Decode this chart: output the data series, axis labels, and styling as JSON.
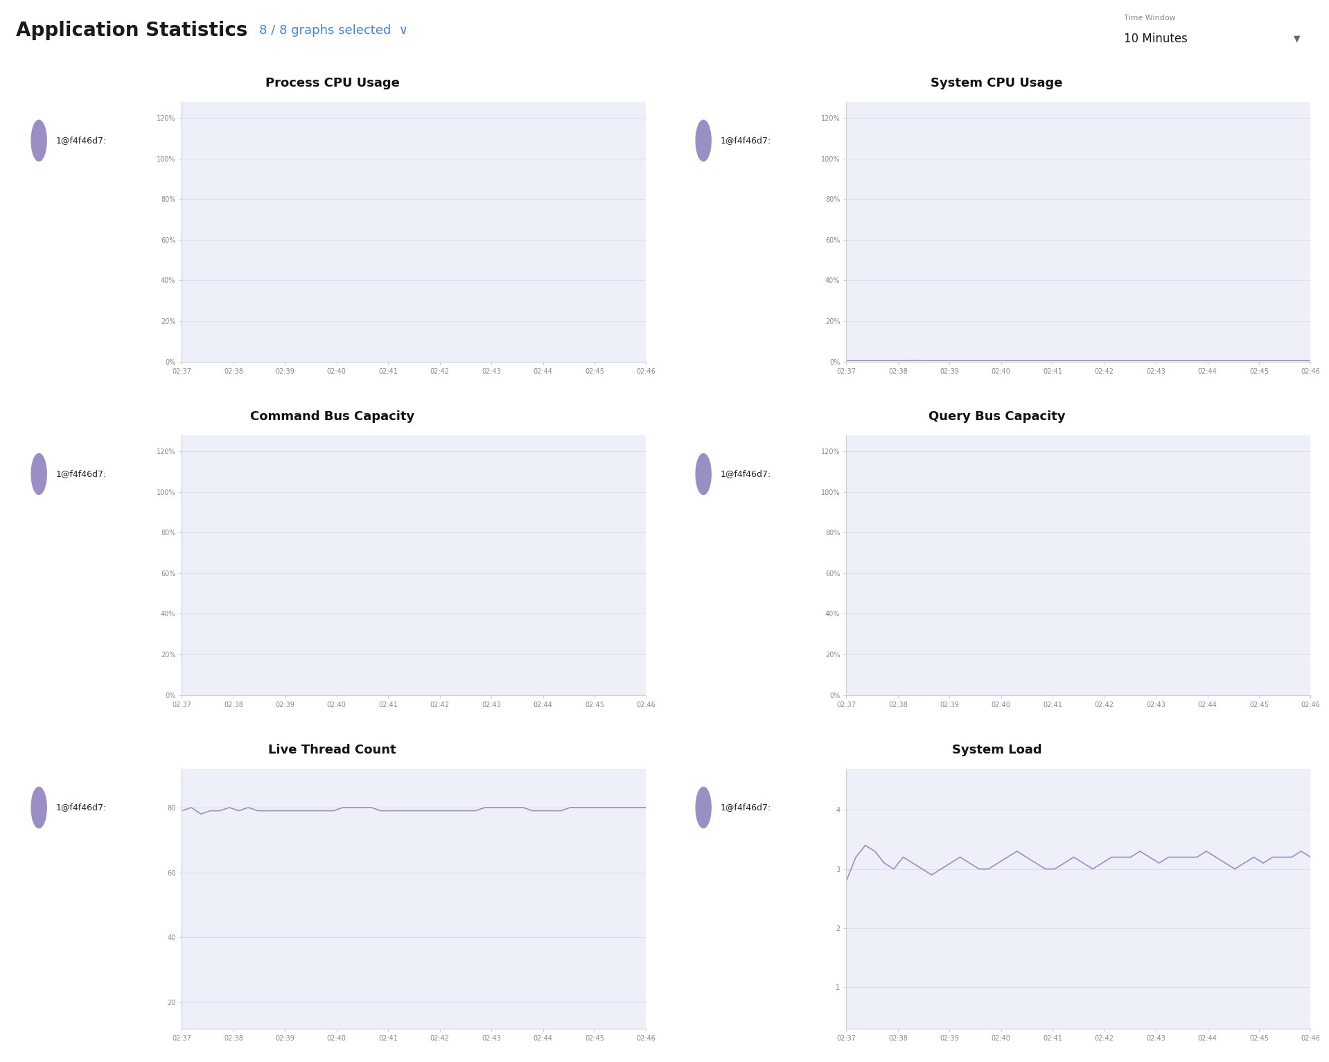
{
  "title": "Application Statistics",
  "graphs_selected": "8 / 8 graphs selected",
  "graphs_selected_color": "#3b82f6",
  "time_window_label": "Time Window",
  "time_window_value": "10 Minutes",
  "legend_label": "1@f4f46d7:",
  "legend_color": "#9b8ec4",
  "page_bg": "#ffffff",
  "panel_bg": "#edf0f8",
  "header_bg": "#ffffff",
  "x_ticks": [
    "02:37",
    "02:38",
    "02:39",
    "02:40",
    "02:41",
    "02:42",
    "02:43",
    "02:44",
    "02:45",
    "02:46"
  ],
  "charts": [
    {
      "title": "Process CPU Usage",
      "yticks_labels": [
        "0%",
        "20%",
        "40%",
        "60%",
        "80%",
        "100%",
        "120%"
      ],
      "yticks_vals": [
        0,
        0.2,
        0.4,
        0.6,
        0.8,
        1.0,
        1.2
      ],
      "ylim": [
        0,
        1.28
      ],
      "is_percent": true,
      "has_data": false,
      "row": 0,
      "col": 0
    },
    {
      "title": "System CPU Usage",
      "yticks_labels": [
        "0%",
        "20%",
        "40%",
        "60%",
        "80%",
        "100%",
        "120%"
      ],
      "yticks_vals": [
        0,
        0.2,
        0.4,
        0.6,
        0.8,
        1.0,
        1.2
      ],
      "ylim": [
        0,
        1.28
      ],
      "is_percent": true,
      "has_data": true,
      "data_y": [
        0.005,
        0.005,
        0.005,
        0.005,
        0.005,
        0.005,
        0.005,
        0.006,
        0.005,
        0.005,
        0.005,
        0.005,
        0.005,
        0.005,
        0.005,
        0.005,
        0.005,
        0.005,
        0.005,
        0.005,
        0.005,
        0.005,
        0.005,
        0.005,
        0.005,
        0.005,
        0.005,
        0.005,
        0.005,
        0.005,
        0.005,
        0.005,
        0.005,
        0.005,
        0.005,
        0.005,
        0.005,
        0.005,
        0.005,
        0.005,
        0.005,
        0.005,
        0.005,
        0.005,
        0.005,
        0.005,
        0.005,
        0.005,
        0.005,
        0.005
      ],
      "row": 0,
      "col": 1
    },
    {
      "title": "Command Bus Capacity",
      "yticks_labels": [
        "0%",
        "20%",
        "40%",
        "60%",
        "80%",
        "100%",
        "120%"
      ],
      "yticks_vals": [
        0,
        0.2,
        0.4,
        0.6,
        0.8,
        1.0,
        1.2
      ],
      "ylim": [
        0,
        1.28
      ],
      "is_percent": true,
      "has_data": false,
      "row": 1,
      "col": 0
    },
    {
      "title": "Query Bus Capacity",
      "yticks_labels": [
        "0%",
        "20%",
        "40%",
        "60%",
        "80%",
        "100%",
        "120%"
      ],
      "yticks_vals": [
        0,
        0.2,
        0.4,
        0.6,
        0.8,
        1.0,
        1.2
      ],
      "ylim": [
        0,
        1.28
      ],
      "is_percent": true,
      "has_data": false,
      "row": 1,
      "col": 1
    },
    {
      "title": "Live Thread Count",
      "yticks_labels": [
        "20",
        "40",
        "60",
        "80"
      ],
      "yticks_vals": [
        20,
        40,
        60,
        80
      ],
      "ylim": [
        12,
        92
      ],
      "is_percent": false,
      "has_data": true,
      "data_y": [
        79,
        80,
        78,
        79,
        79,
        80,
        79,
        80,
        79,
        79,
        79,
        79,
        79,
        79,
        79,
        79,
        79,
        80,
        80,
        80,
        80,
        79,
        79,
        79,
        79,
        79,
        79,
        79,
        79,
        79,
        79,
        79,
        80,
        80,
        80,
        80,
        80,
        79,
        79,
        79,
        79,
        80,
        80,
        80,
        80,
        80,
        80,
        80,
        80,
        80
      ],
      "row": 2,
      "col": 0
    },
    {
      "title": "System Load",
      "yticks_labels": [
        "1",
        "2",
        "3",
        "4"
      ],
      "yticks_vals": [
        1,
        2,
        3,
        4
      ],
      "ylim": [
        0.3,
        4.7
      ],
      "is_percent": false,
      "has_data": true,
      "data_y": [
        2.8,
        3.2,
        3.4,
        3.3,
        3.1,
        3.0,
        3.2,
        3.1,
        3.0,
        2.9,
        3.0,
        3.1,
        3.2,
        3.1,
        3.0,
        3.0,
        3.1,
        3.2,
        3.3,
        3.2,
        3.1,
        3.0,
        3.0,
        3.1,
        3.2,
        3.1,
        3.0,
        3.1,
        3.2,
        3.2,
        3.2,
        3.3,
        3.2,
        3.1,
        3.2,
        3.2,
        3.2,
        3.2,
        3.3,
        3.2,
        3.1,
        3.0,
        3.1,
        3.2,
        3.1,
        3.2,
        3.2,
        3.2,
        3.3,
        3.2
      ],
      "row": 2,
      "col": 1
    }
  ]
}
